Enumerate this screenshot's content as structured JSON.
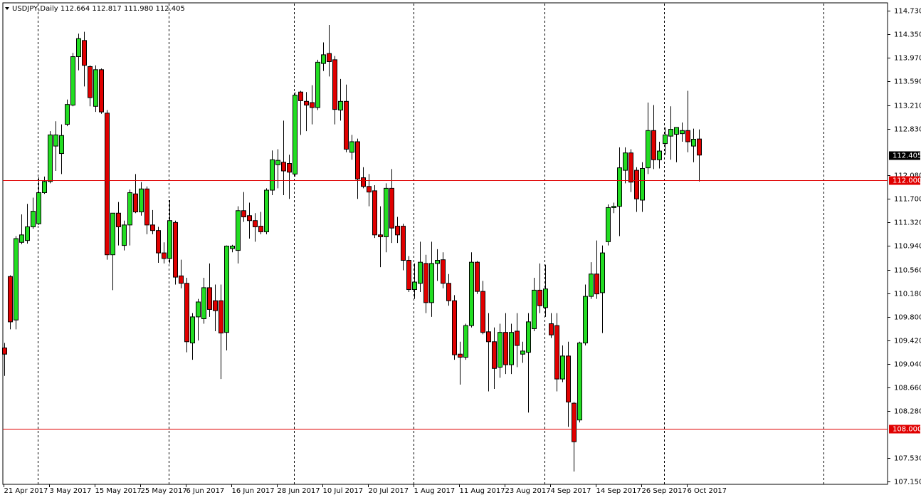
{
  "chart_data": {
    "type": "candlestick",
    "title": "USDJPY,Daily  112.664 112.817 111.980 112.405",
    "categories": [
      "21 Apr 2017",
      null,
      null,
      null,
      null,
      null,
      null,
      null,
      "3 May 2017",
      null,
      null,
      null,
      null,
      null,
      null,
      null,
      "15 May 2017",
      null,
      null,
      null,
      null,
      null,
      null,
      null,
      "25 May 2017",
      null,
      null,
      null,
      null,
      null,
      null,
      null,
      "6 Jun 2017",
      null,
      null,
      null,
      null,
      null,
      null,
      null,
      "16 Jun 2017",
      null,
      null,
      null,
      null,
      null,
      null,
      null,
      "28 Jun 2017",
      null,
      null,
      null,
      null,
      null,
      null,
      null,
      "10 Jul 2017",
      null,
      null,
      null,
      null,
      null,
      null,
      null,
      "20 Jul 2017",
      null,
      null,
      null,
      null,
      null,
      null,
      null,
      "1 Aug 2017",
      null,
      null,
      null,
      null,
      null,
      null,
      null,
      "11 Aug 2017",
      null,
      null,
      null,
      null,
      null,
      null,
      null,
      "23 Aug 2017",
      null,
      null,
      null,
      null,
      null,
      null,
      null,
      "4 Sep 2017",
      null,
      null,
      null,
      null,
      null,
      null,
      null,
      "14 Sep 2017",
      null,
      null,
      null,
      null,
      null,
      null,
      null,
      "26 Sep 2017",
      null,
      null,
      null,
      null,
      null,
      null,
      null,
      "6 Oct 2017",
      null,
      null
    ],
    "open": [
      109.3,
      110.45,
      109.75,
      111.0,
      111.03,
      111.25,
      111.3,
      111.8,
      111.98,
      112.55,
      112.43,
      112.9,
      113.21,
      113.99,
      114.25,
      113.83,
      113.19,
      113.78,
      113.08,
      110.8,
      111.47,
      110.95,
      111.28,
      111.78,
      111.49,
      111.86,
      111.28,
      111.19,
      110.83,
      110.74,
      111.32,
      110.46,
      110.34,
      109.38,
      109.8,
      109.77,
      110.27,
      110.06,
      110.06,
      109.55,
      110.9,
      110.87,
      111.51,
      111.43,
      111.35,
      111.26,
      111.17,
      111.84,
      112.25,
      112.29,
      112.27,
      112.1,
      113.42,
      113.27,
      113.25,
      113.17,
      113.88,
      114.04,
      113.94,
      113.13,
      113.27,
      112.45,
      112.62,
      112.04,
      111.9,
      111.83,
      111.12,
      111.09,
      111.87,
      111.26,
      111.26,
      110.71,
      110.24,
      110.34,
      110.66,
      110.03,
      110.66,
      110.72,
      110.34,
      110.06,
      109.2,
      109.15,
      109.66,
      110.68,
      110.21,
      109.56,
      109.4,
      108.99,
      109.55,
      109.03,
      109.57,
      109.2,
      109.23,
      109.61,
      110.23,
      109.95,
      109.69,
      109.66,
      108.8,
      109.17,
      108.41,
      108.14,
      109.38,
      110.13,
      110.49,
      110.19,
      111.01,
      111.56,
      111.58,
      112.16,
      112.44,
      112.16,
      111.68,
      112.2,
      112.8,
      112.33,
      112.59,
      112.71,
      112.74,
      112.75,
      112.8,
      112.55,
      112.664
    ],
    "high": [
      109.38,
      110.47,
      111.1,
      111.45,
      111.62,
      111.72,
      112.05,
      112.06,
      112.79,
      112.95,
      112.9,
      113.3,
      114.05,
      114.36,
      114.39,
      113.85,
      113.85,
      113.8,
      113.13,
      111.47,
      111.65,
      111.35,
      111.85,
      112.1,
      111.97,
      111.9,
      111.52,
      111.25,
      111.0,
      111.68,
      111.35,
      110.72,
      110.43,
      109.86,
      110.09,
      110.43,
      110.66,
      110.32,
      110.32,
      110.95,
      110.96,
      111.58,
      111.81,
      111.64,
      111.47,
      111.49,
      111.87,
      112.48,
      112.5,
      112.96,
      112.41,
      113.42,
      113.44,
      113.42,
      113.53,
      113.94,
      114.22,
      114.5,
      114.0,
      113.63,
      113.54,
      112.73,
      112.67,
      112.21,
      112.1,
      111.92,
      111.58,
      111.95,
      112.18,
      111.41,
      111.3,
      110.78,
      110.66,
      111.01,
      110.8,
      111.01,
      110.89,
      110.84,
      110.49,
      110.15,
      109.4,
      109.69,
      110.84,
      110.7,
      110.38,
      109.86,
      109.63,
      109.69,
      109.86,
      109.69,
      109.86,
      109.4,
      109.86,
      110.43,
      110.66,
      110.64,
      109.86,
      109.86,
      109.34,
      109.4,
      108.43,
      109.4,
      110.32,
      110.68,
      111.03,
      110.95,
      111.61,
      111.64,
      112.53,
      112.53,
      112.5,
      112.21,
      112.29,
      113.25,
      113.21,
      112.62,
      112.85,
      113.19,
      112.85,
      112.93,
      113.44,
      112.83,
      112.817
    ],
    "low": [
      108.85,
      109.6,
      109.6,
      110.97,
      110.98,
      111.22,
      111.28,
      111.78,
      111.95,
      112.15,
      112.1,
      112.87,
      113.19,
      113.77,
      113.51,
      113.19,
      113.1,
      113.07,
      110.72,
      110.23,
      110.95,
      110.87,
      110.95,
      111.47,
      111.43,
      111.13,
      111.13,
      110.67,
      110.66,
      110.66,
      110.32,
      110.26,
      109.23,
      109.11,
      109.42,
      109.69,
      109.8,
      109.57,
      108.8,
      109.26,
      110.84,
      110.66,
      111.33,
      111.06,
      111.01,
      111.13,
      111.13,
      111.76,
      111.87,
      111.76,
      111.7,
      112.06,
      112.73,
      112.79,
      112.9,
      113.13,
      113.76,
      113.67,
      112.9,
      112.96,
      112.45,
      112.33,
      111.7,
      111.87,
      111.58,
      111.07,
      110.6,
      110.84,
      110.99,
      110.99,
      110.55,
      110.2,
      110.09,
      110.2,
      109.86,
      109.8,
      110.38,
      110.26,
      109.98,
      109.11,
      108.71,
      109.11,
      109.63,
      110.17,
      109.52,
      108.6,
      108.64,
      108.82,
      108.88,
      108.88,
      108.99,
      109.06,
      108.26,
      109.57,
      109.86,
      109.8,
      109.46,
      108.6,
      108.75,
      108.03,
      107.31,
      108.1,
      109.34,
      110.09,
      110.09,
      109.54,
      110.95,
      111.47,
      111.1,
      111.95,
      111.81,
      111.49,
      111.49,
      112.1,
      112.18,
      112.19,
      112.41,
      112.33,
      112.29,
      112.62,
      112.45,
      112.29,
      111.98
    ],
    "close": [
      109.2,
      109.72,
      111.06,
      111.12,
      111.25,
      111.5,
      111.8,
      111.98,
      112.73,
      112.73,
      112.72,
      113.22,
      113.99,
      114.28,
      113.85,
      113.33,
      113.78,
      113.1,
      110.8,
      111.47,
      111.25,
      111.28,
      111.8,
      111.49,
      111.86,
      111.28,
      111.19,
      110.83,
      110.74,
      111.35,
      110.44,
      110.34,
      109.4,
      109.8,
      110.04,
      110.27,
      109.92,
      109.9,
      109.54,
      110.94,
      110.94,
      111.51,
      111.41,
      111.35,
      111.25,
      111.17,
      111.84,
      112.33,
      112.32,
      112.15,
      112.13,
      113.37,
      113.28,
      113.21,
      113.17,
      113.9,
      114.02,
      113.91,
      113.14,
      113.27,
      112.5,
      112.62,
      112.02,
      111.9,
      111.81,
      111.12,
      111.09,
      111.87,
      111.23,
      111.12,
      110.71,
      110.24,
      110.36,
      110.68,
      110.03,
      110.66,
      110.71,
      110.34,
      110.06,
      109.19,
      109.15,
      109.66,
      110.68,
      110.21,
      109.55,
      109.4,
      108.97,
      109.55,
      109.03,
      109.55,
      109.34,
      109.25,
      109.72,
      110.23,
      109.98,
      110.25,
      109.51,
      108.8,
      109.17,
      108.43,
      107.79,
      109.38,
      110.13,
      110.49,
      110.17,
      110.83,
      111.56,
      111.58,
      112.2,
      112.44,
      111.97,
      111.7,
      112.19,
      112.8,
      112.33,
      112.47,
      112.73,
      112.82,
      112.85,
      112.8,
      112.62,
      112.66,
      112.405
    ],
    "up_color": "#22dd22",
    "down_color": "#e00000",
    "ylim": [
      107.104,
      114.856
    ],
    "yticks": [
      {
        "value": 114.73,
        "label": "114.730"
      },
      {
        "value": 114.35,
        "label": "114.350"
      },
      {
        "value": 113.97,
        "label": "113.970"
      },
      {
        "value": 113.59,
        "label": "113.590"
      },
      {
        "value": 113.21,
        "label": "113.210"
      },
      {
        "value": 112.83,
        "label": "112.830"
      },
      {
        "value": 112.08,
        "label": "112.080"
      },
      {
        "value": 111.7,
        "label": "111.700"
      },
      {
        "value": 111.32,
        "label": "111.320"
      },
      {
        "value": 110.94,
        "label": "110.940"
      },
      {
        "value": 110.56,
        "label": "110.560"
      },
      {
        "value": 110.18,
        "label": "110.180"
      },
      {
        "value": 109.8,
        "label": "109.800"
      },
      {
        "value": 109.42,
        "label": "109.420"
      },
      {
        "value": 109.04,
        "label": "109.040"
      },
      {
        "value": 108.66,
        "label": "108.660"
      },
      {
        "value": 108.28,
        "label": "108.280"
      },
      {
        "value": 107.53,
        "label": "107.530"
      },
      {
        "value": 107.15,
        "label": "107.150"
      }
    ],
    "hlines": [
      {
        "value": 112,
        "label": "112.000",
        "color": "#e00000"
      },
      {
        "value": 108,
        "label": "108.000",
        "color": "#e00000"
      }
    ],
    "last_price": {
      "value": 112.405,
      "label": "112.405"
    }
  }
}
